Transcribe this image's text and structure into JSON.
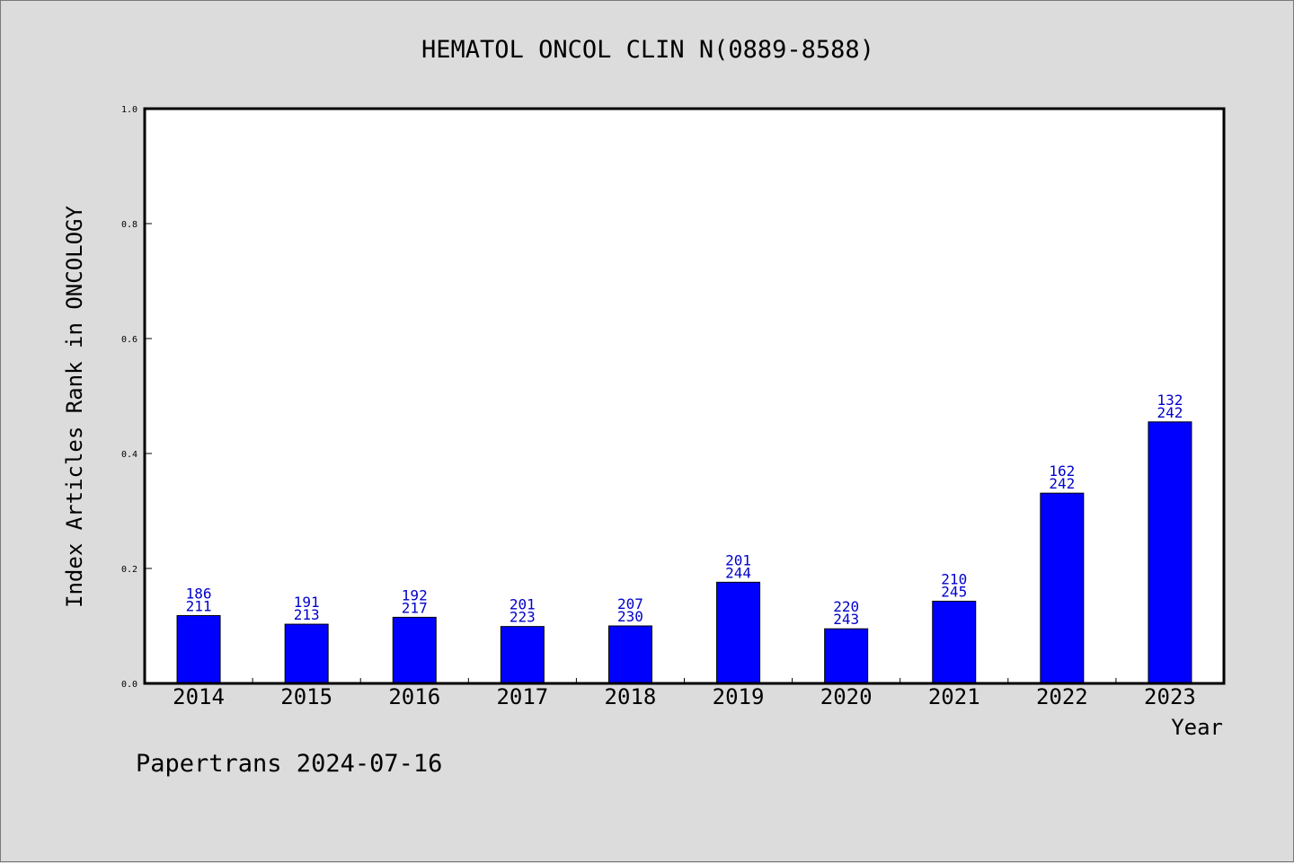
{
  "chart_data": {
    "type": "bar",
    "title": "HEMATOL ONCOL CLIN N(0889-8588)",
    "xlabel": "Year",
    "ylabel": "Index Articles Rank in ONCOLOGY",
    "ylim": [
      0,
      1.0
    ],
    "yticks": [
      "0.0",
      "0.2",
      "0.4",
      "0.6",
      "0.8",
      "1.0"
    ],
    "categories": [
      "2014",
      "2015",
      "2016",
      "2017",
      "2018",
      "2019",
      "2020",
      "2021",
      "2022",
      "2023"
    ],
    "values": [
      0.118,
      0.103,
      0.115,
      0.099,
      0.1,
      0.176,
      0.095,
      0.143,
      0.331,
      0.455
    ],
    "rank": [
      186,
      191,
      192,
      201,
      207,
      201,
      220,
      210,
      162,
      132
    ],
    "total": [
      211,
      213,
      217,
      223,
      230,
      244,
      243,
      245,
      242,
      242
    ],
    "grid": false,
    "bar_color": "#0000ff",
    "label_color": "#0000cc"
  },
  "footer": {
    "text": "Papertrans 2024-07-16"
  }
}
